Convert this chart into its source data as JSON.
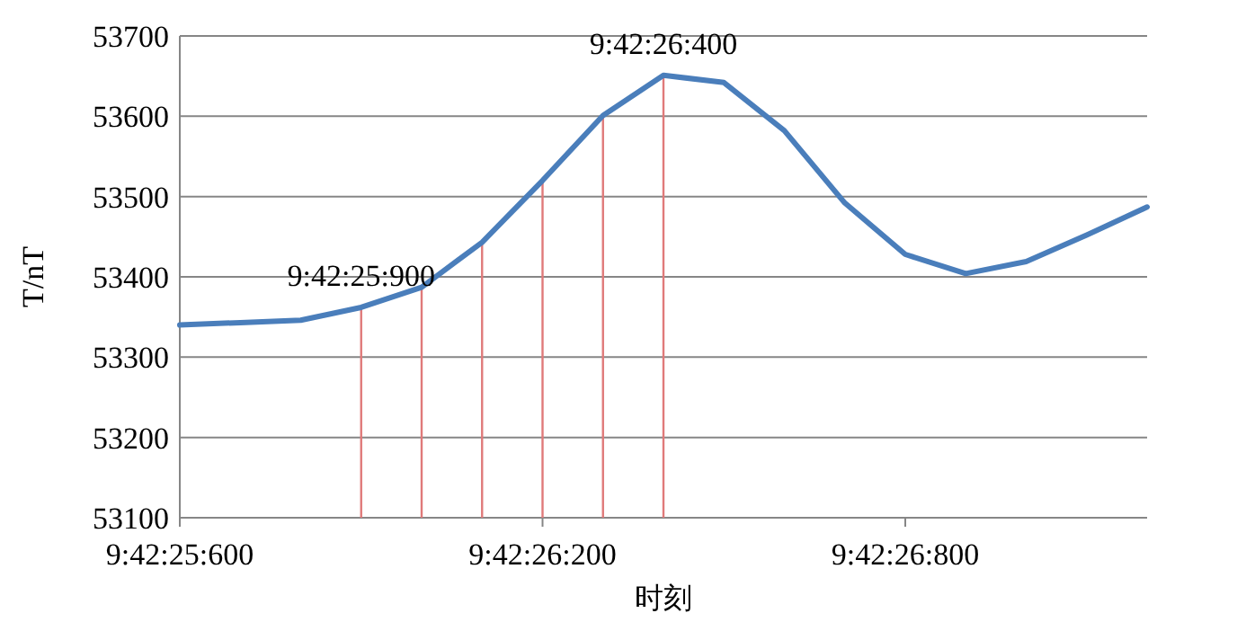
{
  "chart_data": {
    "type": "line",
    "xlabel": "时刻",
    "ylabel": "T/nT",
    "categories": [
      "9:42:25:600",
      null,
      null,
      null,
      null,
      null,
      "9:42:26:200",
      null,
      null,
      null,
      null,
      null,
      "9:42:26:800",
      null,
      null,
      null,
      null
    ],
    "series": [
      {
        "color": "#4a7ebb",
        "values": [
          53340,
          53343,
          53346,
          53362,
          53387,
          53443,
          53520,
          53601,
          53651,
          53642,
          53582,
          53492,
          53428,
          53404,
          53419,
          53452,
          53487
        ]
      },
      {
        "type": "bar",
        "color": "#e07a7a",
        "values": [
          null,
          null,
          null,
          53362,
          53387,
          53443,
          53520,
          53601,
          53651,
          null,
          null,
          null,
          null,
          null,
          null,
          null,
          null
        ]
      }
    ],
    "ylim": [
      53100,
      53700
    ],
    "yticks": [
      53100,
      53200,
      53300,
      53400,
      53500,
      53600,
      53700
    ],
    "grid": "y",
    "marker": "none",
    "line_style": "solid",
    "annotations": [
      {
        "text": "9:42:25:900",
        "y": 53362
      },
      {
        "text": "9:42:26:400",
        "y": 53651
      }
    ]
  }
}
